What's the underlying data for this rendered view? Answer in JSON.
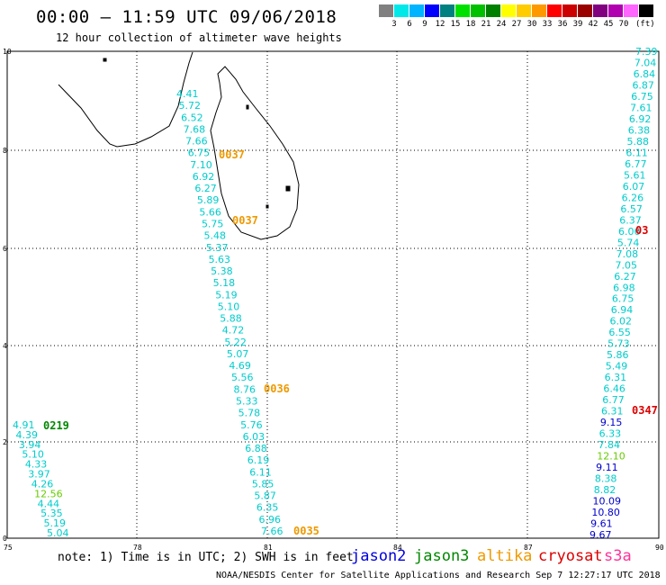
{
  "title": "00:00 – 11:59 UTC 09/06/2018",
  "subtitle": "12 hour collection of altimeter wave heights",
  "scale": {
    "colors": [
      "#808080",
      "#00e8e8",
      "#00b4ff",
      "#0000ff",
      "#008080",
      "#00e000",
      "#00c000",
      "#008000",
      "#ffff00",
      "#ffcc00",
      "#ff9900",
      "#ff0000",
      "#cc0000",
      "#990000",
      "#800080",
      "#b000b0",
      "#ff66ff",
      "#000000"
    ],
    "labels": [
      "3",
      "6",
      "9",
      "12",
      "15",
      "18",
      "21",
      "24",
      "27",
      "30",
      "33",
      "36",
      "39",
      "42",
      "45",
      "70"
    ],
    "unit": "(ft)"
  },
  "axes": {
    "x_ticks": [
      "75",
      "78",
      "81",
      "84",
      "87",
      "90"
    ],
    "y_ticks": [
      "10",
      "8",
      "6",
      "4",
      "2",
      "0"
    ]
  },
  "tracks": {
    "t1": {
      "color": "#00cccc",
      "values": [
        {
          "v": "4.41",
          "c": "#00cccc"
        },
        {
          "v": "5.72",
          "c": "#00cccc"
        },
        {
          "v": "6.52",
          "c": "#00cccc"
        },
        {
          "v": "7.68",
          "c": "#00cccc"
        },
        {
          "v": "7.66",
          "c": "#00cccc"
        },
        {
          "v": "6.75",
          "c": "#00cccc"
        },
        {
          "v": "7.10",
          "c": "#00cccc"
        },
        {
          "v": "6.92",
          "c": "#00cccc"
        },
        {
          "v": "6.27",
          "c": "#00cccc"
        },
        {
          "v": "5.89",
          "c": "#00cccc"
        },
        {
          "v": "5.66",
          "c": "#00cccc"
        },
        {
          "v": "5.75",
          "c": "#00cccc"
        },
        {
          "v": "5.48",
          "c": "#00cccc"
        },
        {
          "v": "5.37",
          "c": "#00cccc"
        },
        {
          "v": "5.63",
          "c": "#00cccc"
        },
        {
          "v": "5.38",
          "c": "#00cccc"
        },
        {
          "v": "5.18",
          "c": "#00cccc"
        },
        {
          "v": "5.19",
          "c": "#00cccc"
        },
        {
          "v": "5.10",
          "c": "#00cccc"
        },
        {
          "v": "5.88",
          "c": "#00cccc"
        },
        {
          "v": "4.72",
          "c": "#00cccc"
        },
        {
          "v": "5.22",
          "c": "#00cccc"
        },
        {
          "v": "5.07",
          "c": "#00cccc"
        },
        {
          "v": "4.69",
          "c": "#00cccc"
        },
        {
          "v": "5.56",
          "c": "#00cccc"
        },
        {
          "v": "8.76",
          "c": "#00cccc"
        },
        {
          "v": "5.33",
          "c": "#00cccc"
        },
        {
          "v": "5.78",
          "c": "#00cccc"
        },
        {
          "v": "5.76",
          "c": "#00cccc"
        },
        {
          "v": "6.03",
          "c": "#00cccc"
        },
        {
          "v": "6.88",
          "c": "#00cccc"
        },
        {
          "v": "6.19",
          "c": "#00cccc"
        },
        {
          "v": "6.11",
          "c": "#00cccc"
        },
        {
          "v": "5.85",
          "c": "#00cccc"
        },
        {
          "v": "5.87",
          "c": "#00cccc"
        },
        {
          "v": "6.35",
          "c": "#00cccc"
        },
        {
          "v": "6.96",
          "c": "#00cccc"
        },
        {
          "v": "7.66",
          "c": "#00cccc"
        }
      ]
    },
    "t2": {
      "values": [
        {
          "v": "4.91",
          "c": "#00cccc"
        },
        {
          "v": "4.39",
          "c": "#00cccc"
        },
        {
          "v": "3.94",
          "c": "#00cccc"
        },
        {
          "v": "5.10",
          "c": "#00cccc"
        },
        {
          "v": "4.33",
          "c": "#00cccc"
        },
        {
          "v": "3.97",
          "c": "#00cccc"
        },
        {
          "v": "4.26",
          "c": "#00cccc"
        },
        {
          "v": "12.56",
          "c": "#66cc00"
        },
        {
          "v": "4.44",
          "c": "#00cccc"
        },
        {
          "v": "5.35",
          "c": "#00cccc"
        },
        {
          "v": "5.19",
          "c": "#00cccc"
        },
        {
          "v": "5.04",
          "c": "#00cccc"
        }
      ]
    },
    "t3": {
      "values": [
        {
          "v": "7.39",
          "c": "#00cccc"
        },
        {
          "v": "7.04",
          "c": "#00cccc"
        },
        {
          "v": "6.84",
          "c": "#00cccc"
        },
        {
          "v": "6.87",
          "c": "#00cccc"
        },
        {
          "v": "6.75",
          "c": "#00cccc"
        },
        {
          "v": "7.61",
          "c": "#00cccc"
        },
        {
          "v": "6.92",
          "c": "#00cccc"
        },
        {
          "v": "6.38",
          "c": "#00cccc"
        },
        {
          "v": "5.88",
          "c": "#00cccc"
        },
        {
          "v": "6.11",
          "c": "#00cccc"
        },
        {
          "v": "6.77",
          "c": "#00cccc"
        },
        {
          "v": "5.61",
          "c": "#00cccc"
        },
        {
          "v": "6.07",
          "c": "#00cccc"
        },
        {
          "v": "6.26",
          "c": "#00cccc"
        },
        {
          "v": "6.57",
          "c": "#00cccc"
        },
        {
          "v": "6.37",
          "c": "#00cccc"
        },
        {
          "v": "6.06",
          "c": "#00cccc"
        },
        {
          "v": "5.74",
          "c": "#00cccc"
        },
        {
          "v": "7.08",
          "c": "#00cccc"
        },
        {
          "v": "7.05",
          "c": "#00cccc"
        },
        {
          "v": "6.27",
          "c": "#00cccc"
        },
        {
          "v": "6.98",
          "c": "#00cccc"
        },
        {
          "v": "6.75",
          "c": "#00cccc"
        },
        {
          "v": "6.94",
          "c": "#00cccc"
        },
        {
          "v": "6.02",
          "c": "#00cccc"
        },
        {
          "v": "6.55",
          "c": "#00cccc"
        },
        {
          "v": "5.73",
          "c": "#00cccc"
        },
        {
          "v": "5.86",
          "c": "#00cccc"
        },
        {
          "v": "5.49",
          "c": "#00cccc"
        },
        {
          "v": "6.31",
          "c": "#00cccc"
        },
        {
          "v": "6.46",
          "c": "#00cccc"
        },
        {
          "v": "6.77",
          "c": "#00cccc"
        },
        {
          "v": "6.31",
          "c": "#00cccc"
        },
        {
          "v": "9.15",
          "c": "#0000cc"
        },
        {
          "v": "6.33",
          "c": "#00cccc"
        },
        {
          "v": "7.84",
          "c": "#00cccc"
        },
        {
          "v": "12.10",
          "c": "#66cc00"
        },
        {
          "v": "9.11",
          "c": "#0000cc"
        },
        {
          "v": "8.38",
          "c": "#00cccc"
        },
        {
          "v": "8.82",
          "c": "#00cccc"
        },
        {
          "v": "10.09",
          "c": "#0000cc"
        },
        {
          "v": "10.80",
          "c": "#0000cc"
        },
        {
          "v": "9.61",
          "c": "#0000cc"
        },
        {
          "v": "9.67",
          "c": "#0000cc"
        }
      ]
    }
  },
  "cycles": [
    {
      "label": "0037",
      "color": "#ee9900"
    },
    {
      "label": "0037",
      "color": "#ee9900"
    },
    {
      "label": "0036",
      "color": "#ee9900"
    },
    {
      "label": "0035",
      "color": "#ee9900"
    },
    {
      "label": "0219",
      "color": "#008800"
    },
    {
      "label": "03",
      "color": "#dd0000"
    },
    {
      "label": "0347",
      "color": "#dd0000"
    }
  ],
  "footer": {
    "note": "note: 1) Time is in UTC; 2) SWH is in feet",
    "satellites": [
      {
        "name": "jason2",
        "color": "#0000dd"
      },
      {
        "name": "jason3",
        "color": "#008800"
      },
      {
        "name": "altika",
        "color": "#ee9900"
      },
      {
        "name": "cryosat",
        "color": "#dd0000"
      },
      {
        "name": "s3a",
        "color": "#ff3399"
      }
    ],
    "credit": "NOAA/NESDIS Center for Satellite Applications and Research   Sep  7 12:27:17 UTC 2018"
  }
}
